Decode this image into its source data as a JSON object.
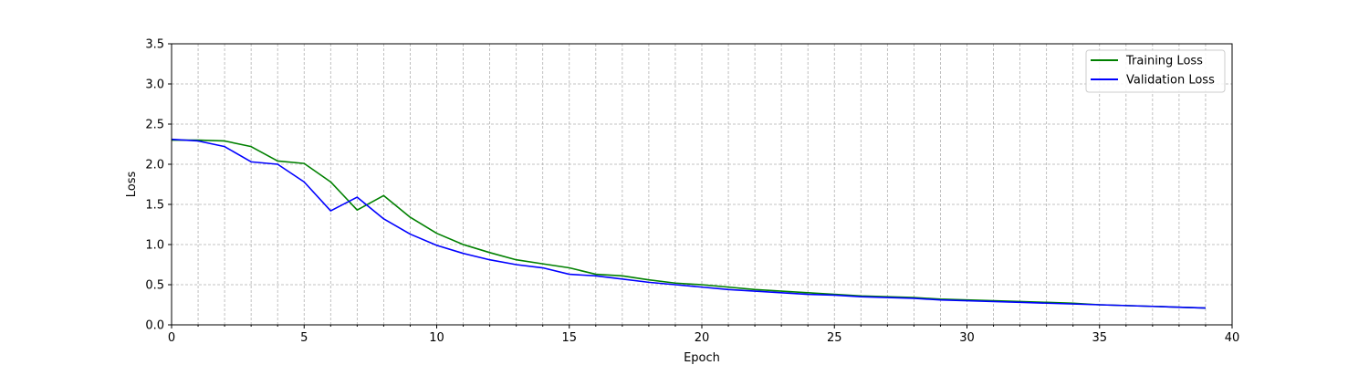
{
  "chart_data": {
    "type": "line",
    "title": "",
    "xlabel": "Epoch",
    "ylabel": "Loss",
    "xlim": [
      0,
      40
    ],
    "ylim": [
      0,
      3.5
    ],
    "x_ticks": [
      0,
      5,
      10,
      15,
      20,
      25,
      30,
      35,
      40
    ],
    "x_tick_labels": [
      "0",
      "5",
      "10",
      "15",
      "20",
      "25",
      "30",
      "35",
      "40"
    ],
    "y_ticks": [
      0.0,
      0.5,
      1.0,
      1.5,
      2.0,
      2.5,
      3.0,
      3.5
    ],
    "y_tick_labels": [
      "0.0",
      "0.5",
      "1.0",
      "1.5",
      "2.0",
      "2.5",
      "3.0",
      "3.5"
    ],
    "grid": true,
    "minor_grid": true,
    "legend_position": "top-right",
    "x": [
      0,
      1,
      2,
      3,
      4,
      5,
      6,
      7,
      8,
      9,
      10,
      11,
      12,
      13,
      14,
      15,
      16,
      17,
      18,
      19,
      20,
      21,
      22,
      23,
      24,
      25,
      26,
      27,
      28,
      29,
      30,
      31,
      32,
      33,
      34,
      35,
      36,
      37,
      38,
      39
    ],
    "series": [
      {
        "name": "Training Loss",
        "color": "#008000",
        "values": [
          2.3,
          2.3,
          2.29,
          2.22,
          2.04,
          2.01,
          1.78,
          1.43,
          1.61,
          1.34,
          1.14,
          1.0,
          0.9,
          0.81,
          0.76,
          0.71,
          0.63,
          0.61,
          0.56,
          0.52,
          0.5,
          0.47,
          0.44,
          0.42,
          0.4,
          0.38,
          0.36,
          0.35,
          0.34,
          0.32,
          0.31,
          0.3,
          0.29,
          0.28,
          0.27,
          0.25,
          0.24,
          0.23,
          0.22,
          0.21
        ]
      },
      {
        "name": "Validation Loss",
        "color": "#0000ff",
        "values": [
          2.31,
          2.29,
          2.22,
          2.03,
          2.0,
          1.78,
          1.42,
          1.59,
          1.32,
          1.13,
          0.99,
          0.89,
          0.81,
          0.75,
          0.71,
          0.63,
          0.61,
          0.57,
          0.53,
          0.5,
          0.47,
          0.44,
          0.42,
          0.4,
          0.38,
          0.37,
          0.35,
          0.34,
          0.33,
          0.31,
          0.3,
          0.29,
          0.28,
          0.27,
          0.26,
          0.25,
          0.24,
          0.23,
          0.22,
          0.21
        ]
      }
    ]
  }
}
